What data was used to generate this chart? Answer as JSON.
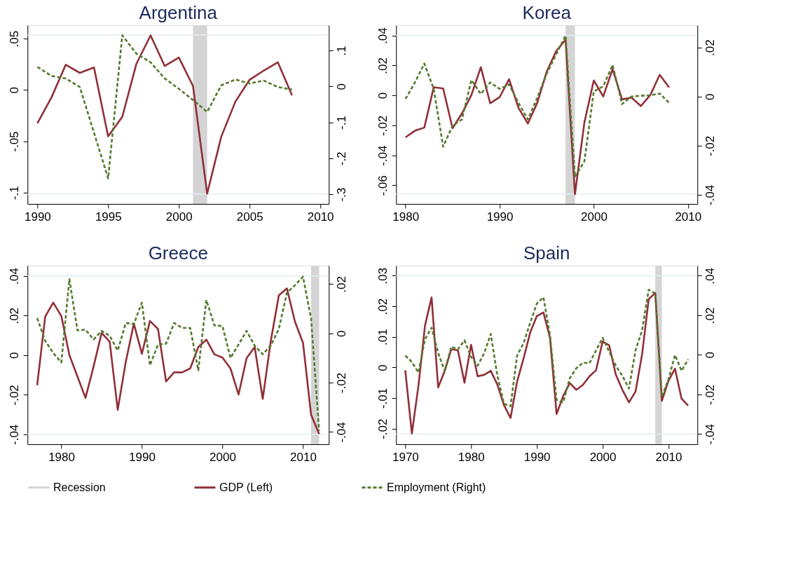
{
  "chart_data": [
    {
      "type": "line",
      "title": "Argentina",
      "legend": "bottom",
      "xlim": [
        1989.3,
        2010.6
      ],
      "xticks": [
        1990,
        1995,
        2000,
        2005,
        2010
      ],
      "ylim": [
        -0.111,
        0.063
      ],
      "yticks": [
        {
          "value": 0.05,
          "label": ".05"
        },
        0,
        {
          "value": -0.05,
          "label": "-.05"
        },
        {
          "value": -0.1,
          "label": "-.1"
        }
      ],
      "y2lim": [
        -0.327,
        0.17
      ],
      "y2ticks": [
        {
          "value": 0.1,
          "label": ".1"
        },
        0,
        {
          "value": -0.1,
          "label": "-.1"
        },
        {
          "value": -0.2,
          "label": "-.2"
        },
        {
          "value": -0.3,
          "label": "-.3"
        }
      ],
      "x": [
        1990,
        1991,
        1992,
        1993,
        1994,
        1995,
        1996,
        1997,
        1998,
        1999,
        2000,
        2001,
        2002,
        2003,
        2004,
        2005,
        2006,
        2007,
        2008
      ],
      "bands": [
        {
          "axis": "x",
          "from": 2001,
          "to": 2002,
          "label": "Recession",
          "color": "#d4d4d4"
        }
      ],
      "ref_lines": [
        {
          "axis": "y",
          "value": 0.0536,
          "color": "#e1eded"
        },
        {
          "axis": "y",
          "value": -0.1014,
          "color": "#e1eded"
        }
      ],
      "series": [
        {
          "name": "GDP (Left)",
          "color": "#903038",
          "line_style": "solid",
          "values": [
            -0.0325,
            -0.0072,
            0.0245,
            0.0166,
            0.0219,
            -0.0452,
            -0.0262,
            0.0255,
            0.0531,
            0.0233,
            0.0315,
            0.0038,
            -0.101,
            -0.0454,
            -0.0113,
            0.0099,
            0.0188,
            0.0269,
            -0.0053
          ]
        },
        {
          "name": "Employment (Right)",
          "color": "#557a2f",
          "line_style": "dashed",
          "axis": "y2",
          "values": [
            0.054,
            0.029,
            0.022,
            -0.002,
            -0.129,
            -0.256,
            0.142,
            0.091,
            0.067,
            0.022,
            -0.007,
            -0.038,
            -0.071,
            0.003,
            0.019,
            0.008,
            0.016,
            -0.002,
            -0.009
          ]
        }
      ]
    },
    {
      "type": "line",
      "title": "Korea",
      "legend": "bottom",
      "xlim": [
        1979.0,
        2011.0
      ],
      "xticks": [
        1980,
        1990,
        2000,
        2010
      ],
      "ylim": [
        -0.0724,
        0.0468
      ],
      "yticks": [
        {
          "value": 0.04,
          "label": ".04"
        },
        {
          "value": 0.02,
          "label": ".02"
        },
        0,
        {
          "value": -0.02,
          "label": "-.02"
        },
        {
          "value": -0.04,
          "label": "-.04"
        },
        {
          "value": -0.06,
          "label": "-.06"
        }
      ],
      "y2lim": [
        -0.0437,
        0.029
      ],
      "y2ticks": [
        {
          "value": 0.02,
          "label": ".02"
        },
        0,
        {
          "value": -0.02,
          "label": "-.02"
        },
        {
          "value": -0.04,
          "label": "-.04"
        }
      ],
      "x": [
        1980,
        1981,
        1982,
        1983,
        1984,
        1985,
        1986,
        1987,
        1988,
        1989,
        1990,
        1991,
        1992,
        1993,
        1994,
        1995,
        1996,
        1997,
        1998,
        1999,
        2000,
        2001,
        2002,
        2003,
        2004,
        2005,
        2006,
        2007,
        2008
      ],
      "bands": [
        {
          "axis": "x",
          "from": 1997,
          "to": 1998,
          "color": "#d4d4d4"
        }
      ],
      "ref_lines": [
        {
          "axis": "y",
          "value": 0.04,
          "color": "#e1eded"
        },
        {
          "axis": "y",
          "value": -0.0659,
          "color": "#e1eded"
        }
      ],
      "series": [
        {
          "name": "GDP (Left)",
          "color": "#903038",
          "line_style": "solid",
          "values": [
            -0.028,
            -0.0236,
            -0.0215,
            0.0054,
            0.0046,
            -0.0219,
            -0.012,
            0.0002,
            0.0188,
            -0.0053,
            -0.0012,
            0.0108,
            -0.0083,
            -0.0188,
            -0.0049,
            0.0158,
            0.0295,
            0.0371,
            -0.0659,
            -0.0181,
            0.01,
            -0.0007,
            0.0175,
            -0.0027,
            -0.0015,
            -0.0071,
            0.0002,
            0.0137,
            0.0053
          ]
        },
        {
          "name": "Employment (Right)",
          "color": "#557a2f",
          "line_style": "dashed",
          "axis": "y2",
          "values": [
            -0.001,
            0.0057,
            0.0134,
            0.0031,
            -0.0204,
            -0.0119,
            -0.0093,
            0.0067,
            0.001,
            0.0057,
            0.0031,
            0.0049,
            -0.0026,
            -0.0093,
            -0.0005,
            0.0093,
            0.0171,
            0.0248,
            -0.0326,
            -0.0264,
            0.0021,
            0.0041,
            0.0129,
            -0.0031,
            0.0,
            0.0003,
            0.0005,
            0.0012,
            -0.0026
          ]
        }
      ]
    },
    {
      "type": "line",
      "title": "Greece",
      "legend": "bottom",
      "xlim": [
        1975.8,
        2013.2
      ],
      "xticks": [
        1980,
        1990,
        2000,
        2010
      ],
      "ylim": [
        -0.045,
        0.0452
      ],
      "yticks": [
        {
          "value": 0.04,
          "label": ".04"
        },
        {
          "value": 0.02,
          "label": ".02"
        },
        0,
        {
          "value": -0.02,
          "label": "-.02"
        },
        {
          "value": -0.04,
          "label": "-.04"
        }
      ],
      "y2lim": [
        -0.045,
        0.0275
      ],
      "y2ticks": [
        {
          "value": 0.02,
          "label": ".02"
        },
        0,
        {
          "value": -0.02,
          "label": "-.02"
        },
        {
          "value": -0.04,
          "label": "-.04"
        }
      ],
      "x": [
        1977,
        1978,
        1979,
        1980,
        1981,
        1982,
        1983,
        1984,
        1985,
        1986,
        1987,
        1988,
        1989,
        1990,
        1991,
        1992,
        1993,
        1994,
        1995,
        1996,
        1997,
        1998,
        1999,
        2000,
        2001,
        2002,
        2003,
        2004,
        2005,
        2006,
        2007,
        2008,
        2009,
        2010,
        2011,
        2012
      ],
      "bands": [
        {
          "axis": "x",
          "from": 2011,
          "to": 2012,
          "color": "#d4d4d4"
        }
      ],
      "ref_lines": [
        {
          "axis": "y",
          "value": 0.04,
          "color": "#e1eded"
        },
        {
          "axis": "y",
          "value": -0.04,
          "color": "#e1eded"
        }
      ],
      "series": [
        {
          "name": "GDP (Left)",
          "color": "#903038",
          "line_style": "solid",
          "values": [
            -0.0152,
            0.0195,
            0.0265,
            0.0197,
            0.0,
            -0.0108,
            -0.0216,
            -0.0058,
            0.0112,
            0.0068,
            -0.0276,
            -0.0034,
            0.0159,
            0.0007,
            0.0172,
            0.0132,
            -0.0133,
            -0.0087,
            -0.0087,
            -0.0067,
            0.0041,
            0.0078,
            0.0004,
            -0.0012,
            -0.0068,
            -0.0199,
            -0.0015,
            0.0041,
            -0.0221,
            0.0072,
            0.0302,
            0.0337,
            0.0169,
            0.0062,
            -0.0301,
            -0.0398
          ]
        },
        {
          "name": "Employment (Right)",
          "color": "#557a2f",
          "line_style": "dashed",
          "axis": "y2",
          "values": [
            0.0062,
            -0.003,
            -0.008,
            -0.0118,
            0.022,
            0.0012,
            0.0015,
            -0.0025,
            0.001,
            -0.001,
            -0.007,
            0.0042,
            0.0038,
            0.0125,
            -0.013,
            -0.0045,
            -0.0042,
            0.0042,
            0.0022,
            0.0022,
            -0.015,
            0.0135,
            0.0032,
            0.003,
            -0.01,
            -0.0045,
            0.001,
            -0.005,
            -0.0085,
            -0.005,
            0.0018,
            0.0165,
            0.0195,
            0.023,
            0.006,
            -0.0395
          ]
        }
      ]
    },
    {
      "type": "line",
      "title": "Spain",
      "legend": "bottom",
      "xlim": [
        1968.6,
        2014.4
      ],
      "xticks": [
        1970,
        1980,
        1990,
        2000,
        2010
      ],
      "ylim": [
        -0.0251,
        0.0333
      ],
      "yticks": [
        {
          "value": 0.03,
          "label": ".03"
        },
        {
          "value": 0.02,
          "label": ".02"
        },
        {
          "value": 0.01,
          "label": ".01"
        },
        0,
        {
          "value": -0.01,
          "label": "-.01"
        },
        {
          "value": -0.02,
          "label": "-.02"
        }
      ],
      "y2lim": [
        -0.0452,
        0.0451
      ],
      "y2ticks": [
        {
          "value": 0.04,
          "label": ".04"
        },
        {
          "value": 0.02,
          "label": ".02"
        },
        0,
        {
          "value": -0.02,
          "label": "-.02"
        },
        {
          "value": -0.04,
          "label": "-.04"
        }
      ],
      "x": [
        1970,
        1971,
        1972,
        1973,
        1974,
        1975,
        1976,
        1977,
        1978,
        1979,
        1980,
        1981,
        1982,
        1983,
        1984,
        1985,
        1986,
        1987,
        1988,
        1989,
        1990,
        1991,
        1992,
        1993,
        1994,
        1995,
        1996,
        1997,
        1998,
        1999,
        2000,
        2001,
        2002,
        2003,
        2004,
        2005,
        2006,
        2007,
        2008,
        2009,
        2010,
        2011,
        2012,
        2013
      ],
      "bands": [
        {
          "axis": "x",
          "from": 2008,
          "to": 2009,
          "color": "#d4d4d4"
        }
      ],
      "ref_lines": [
        {
          "axis": "y",
          "value": 0.03,
          "color": "#e1eded"
        },
        {
          "axis": "y",
          "value": -0.0218,
          "color": "#e1eded"
        }
      ],
      "series": [
        {
          "name": "GDP (Left)",
          "color": "#903038",
          "line_style": "solid",
          "values": [
            -0.0009,
            -0.0216,
            -0.006,
            0.0137,
            0.0229,
            -0.0065,
            -0.0011,
            0.006,
            0.0056,
            -0.005,
            0.0074,
            -0.0029,
            -0.0024,
            -0.0011,
            -0.0056,
            -0.0123,
            -0.0165,
            -0.0046,
            0.0031,
            0.0115,
            0.0168,
            0.018,
            0.0097,
            -0.0152,
            -0.0094,
            -0.0051,
            -0.0073,
            -0.0057,
            -0.0029,
            -0.0009,
            0.0085,
            0.0072,
            -0.0023,
            -0.0073,
            -0.0114,
            -0.0079,
            0.0043,
            0.0223,
            0.0244,
            -0.0109,
            -0.0044,
            -0.0004,
            -0.0102,
            -0.0125
          ]
        },
        {
          "name": "Employment (Right)",
          "color": "#557a2f",
          "line_style": "dashed",
          "axis": "y2",
          "values": [
            -0.0004,
            -0.0036,
            -0.009,
            0.0079,
            0.0137,
            0.0009,
            -0.0081,
            0.0041,
            0.0028,
            0.0073,
            -0.001,
            -0.0055,
            0.0009,
            0.0105,
            -0.0106,
            -0.0247,
            -0.026,
            -0.0004,
            0.006,
            0.0163,
            0.0259,
            0.0291,
            0.0099,
            -0.0228,
            -0.0241,
            -0.0119,
            -0.0068,
            -0.004,
            -0.0042,
            0.0022,
            0.0086,
            0.0015,
            -0.0055,
            -0.0106,
            -0.017,
            0.0022,
            0.0124,
            0.0329,
            0.031,
            -0.0209,
            -0.0125,
            -0.0001,
            -0.0081,
            -0.0023
          ]
        }
      ]
    }
  ]
}
